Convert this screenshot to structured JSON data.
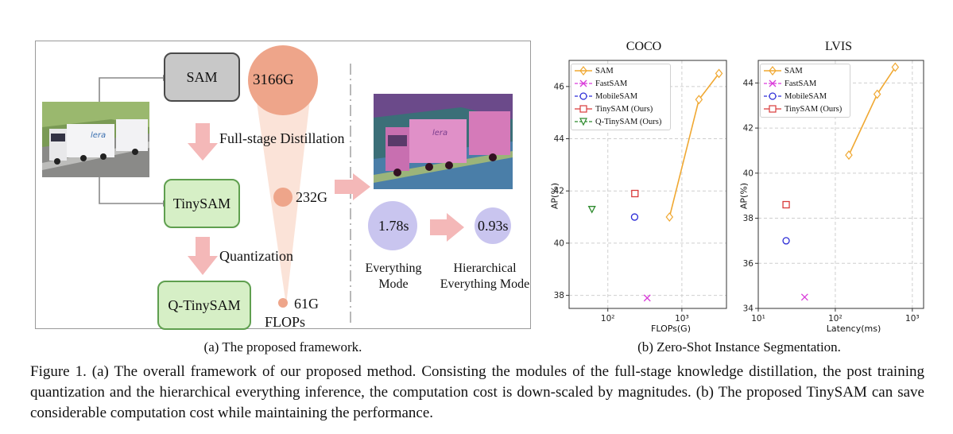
{
  "framework": {
    "modules": {
      "sam": "SAM",
      "tinysam": "TinySAM",
      "qtinysam": "Q-TinySAM"
    },
    "steps": {
      "distillation": "Full-stage Distillation",
      "quantization": "Quantization"
    },
    "flops": {
      "sam": "3166G",
      "tinysam": "232G",
      "qtinysam": "61G",
      "label": "FLOPs"
    },
    "timings": {
      "everything": "1.78s",
      "hierarchical": "0.93s",
      "everything_label_1": "Everything",
      "everything_label_2": "Mode",
      "hier_label_1": "Hierarchical",
      "hier_label_2": "Everything Mode"
    },
    "truck_logo": "lera",
    "caption": "(a) The proposed framework."
  },
  "zero_shot_caption": "(b) Zero-Shot Instance Segmentation.",
  "figure_caption": "Figure 1.  (a) The overall framework of our proposed method.  Consisting the modules of the full-stage knowledge distillation, the post training quantization and the hierarchical everything inference, the computation cost is down-scaled by magnitudes.  (b) The proposed TinySAM can save considerable computation cost while maintaining the performance.",
  "colors": {
    "sam": "#f0a832",
    "fastsam": "#d93bd9",
    "mobilesam": "#2b2bd6",
    "tinysam": "#d93b3b",
    "qtinysam": "#2e8b2e",
    "flops_bubble": "#eea58a",
    "time_bubble": "#c9c5ef",
    "arrow": "#f4b8b8"
  },
  "chart_data": [
    {
      "type": "scatter",
      "title": "COCO",
      "xlabel": "FLOPs(G)",
      "ylabel": "AP(%)",
      "xscale": "log",
      "xlim": [
        30,
        4000
      ],
      "ylim": [
        37.5,
        47
      ],
      "xticks": [
        100,
        1000
      ],
      "xtick_labels": [
        "10²",
        "10³"
      ],
      "yticks": [
        38,
        40,
        42,
        44,
        46
      ],
      "grid": true,
      "legend_position": "top-left",
      "series": [
        {
          "name": "SAM",
          "marker": "diamond",
          "line": true,
          "x": [
            680,
            1700,
            3166
          ],
          "y": [
            41.0,
            45.5,
            46.5
          ]
        },
        {
          "name": "FastSAM",
          "marker": "x",
          "x": [
            340
          ],
          "y": [
            37.9
          ]
        },
        {
          "name": "MobileSAM",
          "marker": "circle",
          "x": [
            230
          ],
          "y": [
            41.0
          ]
        },
        {
          "name": "TinySAM (Ours)",
          "marker": "square",
          "x": [
            232
          ],
          "y": [
            41.9
          ]
        },
        {
          "name": "Q-TinySAM (Ours)",
          "marker": "triangle-down",
          "x": [
            61
          ],
          "y": [
            41.3
          ]
        }
      ]
    },
    {
      "type": "scatter",
      "title": "LVIS",
      "xlabel": "Latency(ms)",
      "ylabel": "AP(%)",
      "xscale": "log",
      "xlim": [
        10,
        1400
      ],
      "ylim": [
        34,
        45
      ],
      "xticks": [
        10,
        100,
        1000
      ],
      "xtick_labels": [
        "10¹",
        "10²",
        "10³"
      ],
      "yticks": [
        34,
        36,
        38,
        40,
        42,
        44
      ],
      "grid": true,
      "legend_position": "top-left",
      "series": [
        {
          "name": "SAM",
          "marker": "diamond",
          "line": true,
          "x": [
            150,
            350,
            600
          ],
          "y": [
            40.8,
            43.5,
            44.7
          ]
        },
        {
          "name": "FastSAM",
          "marker": "x",
          "x": [
            40
          ],
          "y": [
            34.5
          ]
        },
        {
          "name": "MobileSAM",
          "marker": "circle",
          "x": [
            23
          ],
          "y": [
            37.0
          ]
        },
        {
          "name": "TinySAM (Ours)",
          "marker": "square",
          "x": [
            23
          ],
          "y": [
            38.6
          ]
        }
      ]
    }
  ]
}
